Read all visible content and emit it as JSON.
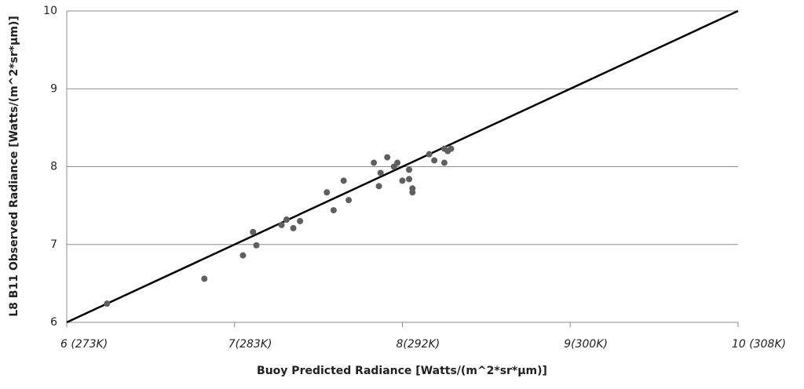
{
  "chart_data": {
    "type": "scatter",
    "x_label": "Buoy Predicted Radiance  [Watts/(m^2*sr*µm)]",
    "y_label": "L8 B11 Observed Radiance  [Watts/(m^2*sr*µm)]",
    "xlim": [
      6,
      10
    ],
    "ylim": [
      6,
      10
    ],
    "xticks": [
      {
        "value": 6,
        "label": "6 (273K)"
      },
      {
        "value": 7,
        "label": "7(283K)"
      },
      {
        "value": 8,
        "label": "8(292K)"
      },
      {
        "value": 9,
        "label": "9(300K)"
      },
      {
        "value": 10,
        "label": "10 (308K)"
      }
    ],
    "yticks": [
      6,
      7,
      8,
      9,
      10
    ],
    "grid": true,
    "reference_line": {
      "x": [
        6,
        10
      ],
      "y": [
        6,
        10
      ],
      "color": "#000000"
    },
    "series": [
      {
        "color": "#5f5f5f",
        "x": [
          6.24,
          6.82,
          7.05,
          7.11,
          7.13,
          7.28,
          7.31,
          7.35,
          7.39,
          7.55,
          7.59,
          7.65,
          7.68,
          7.83,
          7.86,
          7.87,
          7.91,
          7.95,
          7.97,
          8.0,
          8.04,
          8.04,
          8.06,
          8.06,
          8.16,
          8.19,
          8.25,
          8.25,
          8.27,
          8.29
        ],
        "values": [
          6.24,
          6.56,
          6.86,
          7.16,
          6.99,
          7.25,
          7.32,
          7.21,
          7.3,
          7.67,
          7.44,
          7.82,
          7.57,
          8.05,
          7.75,
          7.92,
          8.12,
          8.0,
          8.05,
          7.82,
          7.96,
          7.84,
          7.72,
          7.67,
          8.16,
          8.08,
          8.05,
          8.23,
          8.2,
          8.23
        ]
      }
    ]
  }
}
